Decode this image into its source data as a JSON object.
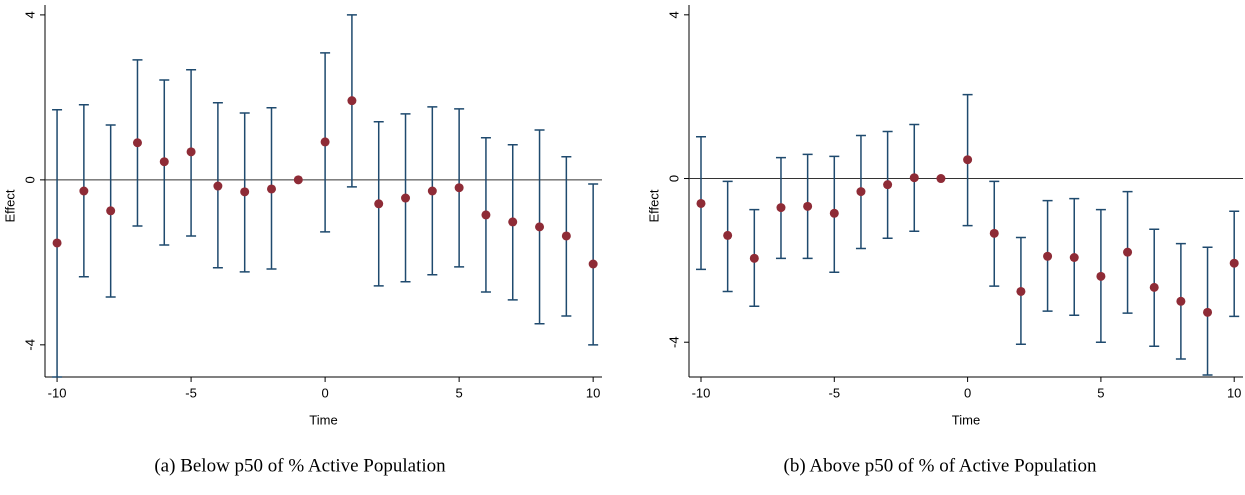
{
  "chart_data": [
    {
      "type": "errorbar",
      "caption": "(a) Below p50 of % Active Population",
      "xlabel": "Time",
      "ylabel": "Effect",
      "x": [
        -10,
        -9,
        -8,
        -7,
        -6,
        -5,
        -4,
        -3,
        -2,
        -1,
        0,
        1,
        2,
        3,
        4,
        5,
        6,
        7,
        8,
        9,
        10
      ],
      "values": [
        -1.53,
        -0.27,
        -0.75,
        0.9,
        0.44,
        0.68,
        -0.15,
        -0.29,
        -0.22,
        0,
        0.92,
        1.92,
        -0.58,
        -0.44,
        -0.27,
        -0.19,
        -0.85,
        -1.02,
        -1.14,
        -1.36,
        -2.04
      ],
      "lower": [
        -4.78,
        -2.35,
        -2.84,
        -1.12,
        -1.58,
        -1.36,
        -2.13,
        -2.23,
        -2.16,
        null,
        -1.26,
        -0.17,
        -2.57,
        -2.47,
        -2.3,
        -2.11,
        -2.72,
        -2.91,
        -3.49,
        -3.3,
        -4.0
      ],
      "upper": [
        1.7,
        1.82,
        1.33,
        2.91,
        2.42,
        2.67,
        1.87,
        1.62,
        1.75,
        null,
        3.08,
        4.0,
        1.41,
        1.6,
        1.77,
        1.72,
        1.02,
        0.85,
        1.21,
        0.56,
        -0.1
      ],
      "color": "#8e2b36",
      "bar_color": "#1f4a6e",
      "refline_y": 0,
      "xlim": [
        -10.45,
        10.33
      ],
      "ylim": [
        -4.78,
        4.24
      ],
      "xticks": [
        -10,
        -5,
        0,
        5,
        10
      ],
      "yticks": [
        -4,
        0,
        4
      ]
    },
    {
      "type": "errorbar",
      "caption": "(b) Above p50 of % of Active Population",
      "xlabel": "Time",
      "ylabel": "Effect",
      "x": [
        -10,
        -9,
        -8,
        -7,
        -6,
        -5,
        -4,
        -3,
        -2,
        -1,
        0,
        1,
        2,
        3,
        4,
        5,
        6,
        7,
        8,
        9,
        10
      ],
      "values": [
        -0.61,
        -1.39,
        -1.95,
        -0.71,
        -0.68,
        -0.85,
        -0.32,
        -0.15,
        0.02,
        0,
        0.46,
        -1.34,
        -2.76,
        -1.9,
        -1.93,
        -2.39,
        -1.8,
        -2.66,
        -3.0,
        -3.27,
        -2.07
      ],
      "lower": [
        -2.22,
        -2.76,
        -3.12,
        -1.95,
        -1.95,
        -2.29,
        -1.71,
        -1.46,
        -1.29,
        null,
        -1.15,
        -2.63,
        -4.05,
        -3.24,
        -3.34,
        -4.0,
        -3.29,
        -4.1,
        -4.41,
        -4.8,
        -3.37
      ],
      "upper": [
        1.02,
        -0.07,
        -0.76,
        0.51,
        0.59,
        0.54,
        1.05,
        1.15,
        1.32,
        null,
        2.05,
        -0.07,
        -1.44,
        -0.54,
        -0.49,
        -0.76,
        -0.32,
        -1.24,
        -1.59,
        -1.68,
        -0.8
      ],
      "color": "#8e2b36",
      "bar_color": "#1f4a6e",
      "refline_y": 0,
      "xlim": [
        -10.45,
        10.33
      ],
      "ylim": [
        -4.85,
        4.24
      ],
      "xticks": [
        -10,
        -5,
        0,
        5,
        10
      ],
      "yticks": [
        -4,
        0,
        4
      ]
    }
  ]
}
